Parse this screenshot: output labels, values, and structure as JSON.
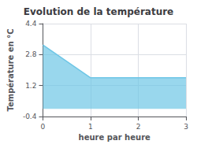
{
  "chart_data": {
    "type": "area",
    "title": "Evolution de la température",
    "xlabel": "heure par heure",
    "ylabel": "Température en °C",
    "x": [
      0,
      1,
      3
    ],
    "values": [
      3.3,
      1.6,
      1.6
    ],
    "color": "#6ec6e6",
    "xlim": [
      0,
      3
    ],
    "ylim": [
      -0.4,
      4.4
    ],
    "xticks": [
      0,
      1,
      2,
      3
    ],
    "yticks": [
      -0.4,
      1.2,
      2.8,
      4.4
    ],
    "grid": true
  }
}
